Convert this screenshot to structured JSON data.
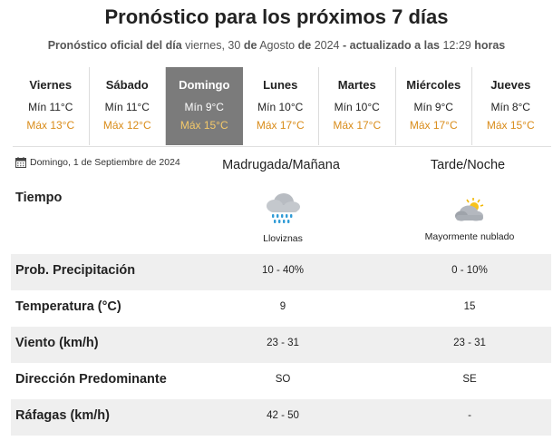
{
  "header": {
    "title": "Pronóstico para los próximos 7 días",
    "sub_prefix": "Pronóstico oficial del día",
    "sub_weekday": "viernes,",
    "sub_day": "30",
    "sub_de1": "de",
    "sub_month": "Agosto",
    "sub_de2": "de",
    "sub_year": "2024",
    "sub_updated": "- actualizado a las",
    "sub_time": "12:29",
    "sub_hours": "horas"
  },
  "days": [
    {
      "name": "Viernes",
      "min": "Mín 11°C",
      "max": "Máx 13°C"
    },
    {
      "name": "Sábado",
      "min": "Mín 11°C",
      "max": "Máx 12°C"
    },
    {
      "name": "Domingo",
      "min": "Mín 9°C",
      "max": "Máx 15°C"
    },
    {
      "name": "Lunes",
      "min": "Mín 10°C",
      "max": "Máx 17°C"
    },
    {
      "name": "Martes",
      "min": "Mín 10°C",
      "max": "Máx 17°C"
    },
    {
      "name": "Miércoles",
      "min": "Mín 9°C",
      "max": "Máx 17°C"
    },
    {
      "name": "Jueves",
      "min": "Mín 8°C",
      "max": "Máx 15°C"
    }
  ],
  "detail": {
    "date": "Domingo, 1 de Septiembre de 2024",
    "col1": "Madrugada/Mañana",
    "col2": "Tarde/Noche",
    "tiempo_label": "Tiempo",
    "weather1": {
      "desc": "Lloviznas",
      "icon": "drizzle-cloud-icon"
    },
    "weather2": {
      "desc": "Mayormente nublado",
      "icon": "mostly-cloudy-icon"
    },
    "rows": [
      {
        "label": "Prob. Precipitación",
        "v1": "10 - 40%",
        "v2": "0 - 10%"
      },
      {
        "label": "Temperatura (°C)",
        "v1": "9",
        "v2": "15"
      },
      {
        "label": "Viento (km/h)",
        "v1": "23 - 31",
        "v2": "23 - 31"
      },
      {
        "label": "Dirección Predominante",
        "v1": "SO",
        "v2": "SE"
      },
      {
        "label": "Ráfagas (km/h)",
        "v1": "42 - 50",
        "v2": "-"
      }
    ]
  },
  "colors": {
    "max_temp": "#d98c1a",
    "active_day_bg": "#7b7b7b",
    "row_shade": "#efefef"
  }
}
